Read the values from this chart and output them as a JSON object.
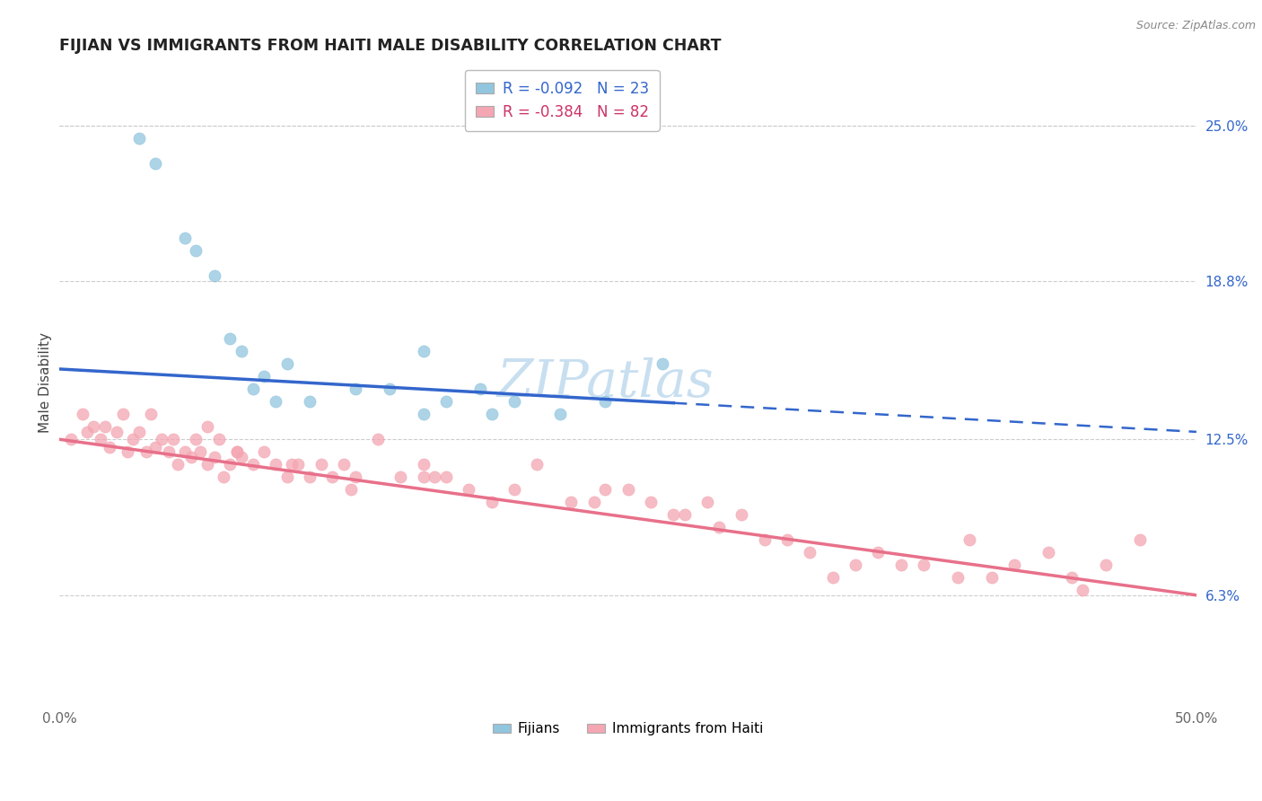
{
  "title": "FIJIAN VS IMMIGRANTS FROM HAITI MALE DISABILITY CORRELATION CHART",
  "source": "Source: ZipAtlas.com",
  "ylabel": "Male Disability",
  "right_ytick_vals": [
    6.3,
    12.5,
    18.8,
    25.0
  ],
  "right_ytick_labels": [
    "6.3%",
    "12.5%",
    "18.8%",
    "25.0%"
  ],
  "xmin": 0.0,
  "xmax": 50.0,
  "ymin": 2.0,
  "ymax": 27.5,
  "fijians_R": -0.092,
  "fijians_N": 23,
  "haiti_R": -0.384,
  "haiti_N": 82,
  "fijian_color": "#92c5de",
  "haiti_color": "#f4a6b2",
  "fijian_line_color": "#3366cc",
  "haiti_line_color": "#e8708a",
  "fijian_scatter_x": [
    3.5,
    4.2,
    5.5,
    6.0,
    6.8,
    7.5,
    8.0,
    8.5,
    9.0,
    9.5,
    10.0,
    11.0,
    13.0,
    14.5,
    16.0,
    16.0,
    17.0,
    18.5,
    19.0,
    20.0,
    22.0,
    24.0,
    26.5
  ],
  "fijian_scatter_y": [
    24.5,
    23.5,
    20.5,
    20.0,
    19.0,
    16.5,
    16.0,
    14.5,
    15.0,
    14.0,
    15.5,
    14.0,
    14.5,
    14.5,
    13.5,
    16.0,
    14.0,
    14.5,
    13.5,
    14.0,
    13.5,
    14.0,
    15.5
  ],
  "haiti_scatter_x": [
    0.5,
    1.0,
    1.2,
    1.5,
    1.8,
    2.0,
    2.2,
    2.5,
    2.8,
    3.0,
    3.2,
    3.5,
    3.8,
    4.0,
    4.2,
    4.5,
    4.8,
    5.0,
    5.2,
    5.5,
    5.8,
    6.0,
    6.2,
    6.5,
    6.8,
    7.0,
    7.2,
    7.5,
    7.8,
    8.0,
    8.5,
    9.0,
    9.5,
    10.0,
    10.5,
    11.0,
    11.5,
    12.0,
    12.5,
    13.0,
    14.0,
    15.0,
    16.0,
    16.5,
    17.0,
    18.0,
    19.0,
    20.0,
    21.0,
    22.5,
    24.0,
    25.0,
    26.0,
    27.0,
    28.5,
    29.0,
    30.0,
    32.0,
    33.0,
    35.0,
    36.0,
    38.0,
    39.5,
    40.0,
    42.0,
    43.5,
    44.5,
    46.0,
    47.5,
    27.5,
    31.0,
    34.0,
    37.0,
    41.0,
    45.0,
    23.5,
    16.0,
    6.5,
    7.8,
    10.2,
    12.8
  ],
  "haiti_scatter_y": [
    12.5,
    13.5,
    12.8,
    13.0,
    12.5,
    13.0,
    12.2,
    12.8,
    13.5,
    12.0,
    12.5,
    12.8,
    12.0,
    13.5,
    12.2,
    12.5,
    12.0,
    12.5,
    11.5,
    12.0,
    11.8,
    12.5,
    12.0,
    11.5,
    11.8,
    12.5,
    11.0,
    11.5,
    12.0,
    11.8,
    11.5,
    12.0,
    11.5,
    11.0,
    11.5,
    11.0,
    11.5,
    11.0,
    11.5,
    11.0,
    12.5,
    11.0,
    11.5,
    11.0,
    11.0,
    10.5,
    10.0,
    10.5,
    11.5,
    10.0,
    10.5,
    10.5,
    10.0,
    9.5,
    10.0,
    9.0,
    9.5,
    8.5,
    8.0,
    7.5,
    8.0,
    7.5,
    7.0,
    8.5,
    7.5,
    8.0,
    7.0,
    7.5,
    8.5,
    9.5,
    8.5,
    7.0,
    7.5,
    7.0,
    6.5,
    10.0,
    11.0,
    13.0,
    12.0,
    11.5,
    10.5
  ],
  "fijian_trend_x0": 0.0,
  "fijian_trend_y0": 15.3,
  "fijian_trend_x1": 50.0,
  "fijian_trend_y1": 12.8,
  "fijian_solid_end": 27.0,
  "haiti_trend_x0": 0.0,
  "haiti_trend_y0": 12.5,
  "haiti_trend_x1": 50.0,
  "haiti_trend_y1": 6.3,
  "watermark": "ZIPatlas",
  "watermark_color": "#c8dff0"
}
